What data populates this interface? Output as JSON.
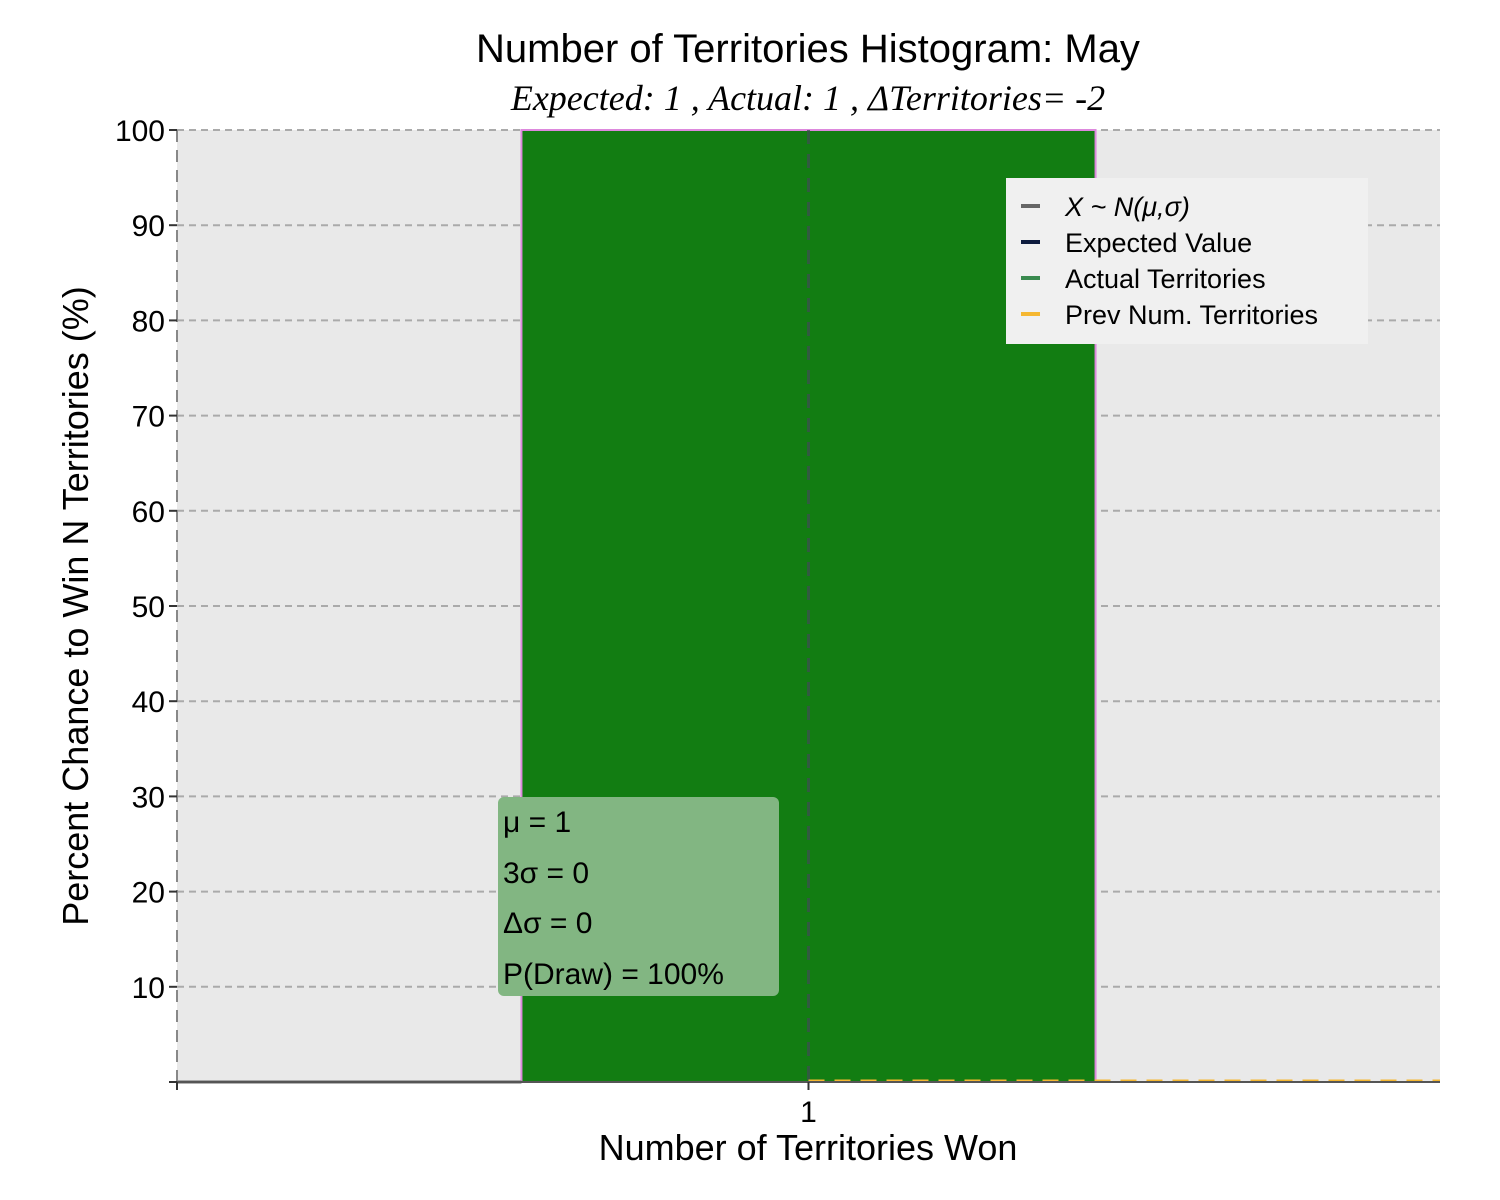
{
  "chart_data": {
    "type": "bar",
    "title": "Number of Territories Histogram: May",
    "subtitle": "Expected: 1 , Actual: 1 , ΔTerritories= -2",
    "xlabel": "Number of Territories Won",
    "ylabel": "Percent Chance to Win N Territories (%)",
    "x_ticks": [
      "1"
    ],
    "y_ticks": [
      "10",
      "20",
      "30",
      "40",
      "50",
      "60",
      "70",
      "80",
      "90",
      "100"
    ],
    "xlim": [
      0.45,
      1.55
    ],
    "ylim": [
      0,
      100
    ],
    "bars": [
      {
        "x": 1,
        "x_start": 0.75,
        "x_end": 1.25,
        "value": 100,
        "color": "#127d12"
      }
    ],
    "lines": {
      "normal_fit": {
        "name": "X ~ N(μ,σ)",
        "color": "#666666",
        "value": 0
      },
      "expected_value": {
        "name": "Expected Value",
        "color": "#0d1b3e",
        "x": 1
      },
      "actual_territories": {
        "name": "Actual Territories",
        "color": "#3a8a4f",
        "x": 1
      },
      "prev_num_territories": {
        "name": "Prev Num. Territories",
        "color": "#f5b731",
        "x_start": 1,
        "value": 0
      }
    },
    "legend": {
      "position": "upper-right",
      "entries": [
        "X ~ N(μ,σ)",
        "Expected Value",
        "Actual Territories",
        "Prev Num. Territories"
      ]
    },
    "stats_box": {
      "mu": "μ = 1",
      "three_sigma": "3σ = 0",
      "delta_sigma": "Δσ = 0",
      "p_draw": "P(Draw) = 100%"
    },
    "grid": true,
    "colors": {
      "background": "#e9e9e9",
      "bar": "#127d12",
      "bar_edge": "#dd88dd",
      "grid": "#aaaaaa",
      "stats_box": "#82b682"
    }
  }
}
